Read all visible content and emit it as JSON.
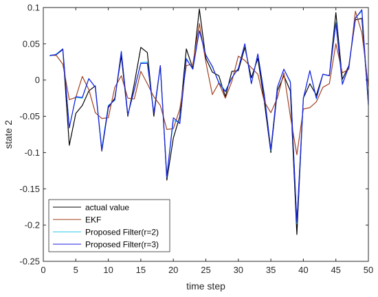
{
  "chart_data": {
    "type": "line",
    "title": "",
    "xlabel": "time step",
    "ylabel": "state 2",
    "xlim": [
      0,
      50
    ],
    "ylim": [
      -0.25,
      0.1
    ],
    "xticks": [
      0,
      5,
      10,
      15,
      20,
      25,
      30,
      35,
      40,
      45,
      50
    ],
    "yticks": [
      -0.25,
      -0.2,
      -0.15,
      -0.1,
      -0.05,
      0,
      0.05,
      0.1
    ],
    "xtick_labels": [
      "0",
      "5",
      "10",
      "15",
      "20",
      "25",
      "30",
      "35",
      "40",
      "45",
      "50"
    ],
    "ytick_labels": [
      "-0.25",
      "-0.2",
      "-0.15",
      "-0.1",
      "-0.05",
      "0",
      "0.05",
      "0.1"
    ],
    "grid": false,
    "legend_position": "bottom-left",
    "x": [
      1,
      2,
      3,
      4,
      5,
      6,
      7,
      8,
      9,
      10,
      11,
      12,
      13,
      14,
      15,
      16,
      17,
      18,
      19,
      20,
      21,
      22,
      23,
      24,
      25,
      26,
      27,
      28,
      29,
      30,
      31,
      32,
      33,
      34,
      35,
      36,
      37,
      38,
      39,
      40,
      41,
      42,
      43,
      44,
      45,
      46,
      47,
      48,
      49,
      50
    ],
    "series": [
      {
        "name": "actual value",
        "color": "#000000",
        "values": [
          0.034,
          0.035,
          0.042,
          -0.09,
          -0.046,
          -0.035,
          -0.015,
          -0.008,
          -0.098,
          -0.038,
          -0.025,
          0.033,
          -0.05,
          -0.005,
          0.045,
          0.038,
          -0.05,
          0.02,
          -0.138,
          -0.08,
          -0.05,
          0.043,
          0.016,
          0.098,
          0.03,
          0.011,
          0.006,
          -0.023,
          0.012,
          0.013,
          0.045,
          0.003,
          0.03,
          -0.03,
          -0.1,
          -0.015,
          0.006,
          -0.015,
          -0.213,
          -0.025,
          -0.005,
          -0.021,
          0.008,
          0.006,
          0.093,
          0.001,
          0.02,
          0.083,
          0.085,
          -0.032
        ]
      },
      {
        "name": "EKF",
        "color": "#a0401e",
        "values": [
          0.034,
          0.034,
          0.022,
          -0.027,
          -0.024,
          0.005,
          -0.013,
          -0.045,
          -0.053,
          -0.052,
          -0.01,
          0.006,
          -0.025,
          -0.026,
          0.012,
          -0.005,
          -0.023,
          -0.035,
          -0.068,
          -0.067,
          -0.04,
          0.02,
          0.022,
          0.078,
          0.025,
          -0.02,
          -0.004,
          -0.025,
          -0.002,
          0.033,
          0.027,
          0.017,
          0.008,
          -0.03,
          -0.045,
          -0.025,
          0.01,
          -0.05,
          -0.103,
          -0.04,
          -0.038,
          -0.03,
          -0.01,
          -0.005,
          0.05,
          0.01,
          0.015,
          0.095,
          0.065,
          -0.009
        ]
      },
      {
        "name": "Proposed Filter(r=2)",
        "color": "#26c6e8",
        "values": [
          0.033,
          0.036,
          0.043,
          -0.065,
          -0.024,
          -0.025,
          0.002,
          -0.01,
          -0.094,
          -0.035,
          -0.028,
          0.04,
          -0.048,
          -0.014,
          0.024,
          0.025,
          -0.045,
          0.019,
          -0.134,
          -0.056,
          -0.058,
          0.03,
          0.015,
          0.068,
          0.035,
          0.018,
          -0.003,
          -0.015,
          0.003,
          0.016,
          0.05,
          -0.005,
          0.036,
          -0.02,
          -0.097,
          -0.01,
          0.015,
          -0.002,
          -0.198,
          -0.026,
          0.013,
          -0.026,
          0.008,
          0.006,
          0.08,
          -0.005,
          0.018,
          0.086,
          0.095,
          -0.035
        ]
      },
      {
        "name": "Proposed Filter(r=3)",
        "color": "#1c1ce0",
        "values": [
          0.034,
          0.035,
          0.043,
          -0.066,
          -0.023,
          -0.024,
          0.002,
          -0.01,
          -0.097,
          -0.036,
          -0.027,
          0.039,
          -0.048,
          -0.013,
          0.023,
          0.023,
          -0.046,
          0.02,
          -0.133,
          -0.052,
          -0.06,
          0.029,
          0.015,
          0.068,
          0.034,
          0.019,
          -0.004,
          -0.016,
          0.003,
          0.016,
          0.05,
          -0.005,
          0.036,
          -0.021,
          -0.096,
          -0.01,
          0.015,
          -0.003,
          -0.196,
          -0.025,
          0.013,
          -0.025,
          0.008,
          0.006,
          0.078,
          -0.006,
          0.019,
          0.085,
          0.097,
          -0.034
        ]
      }
    ]
  }
}
